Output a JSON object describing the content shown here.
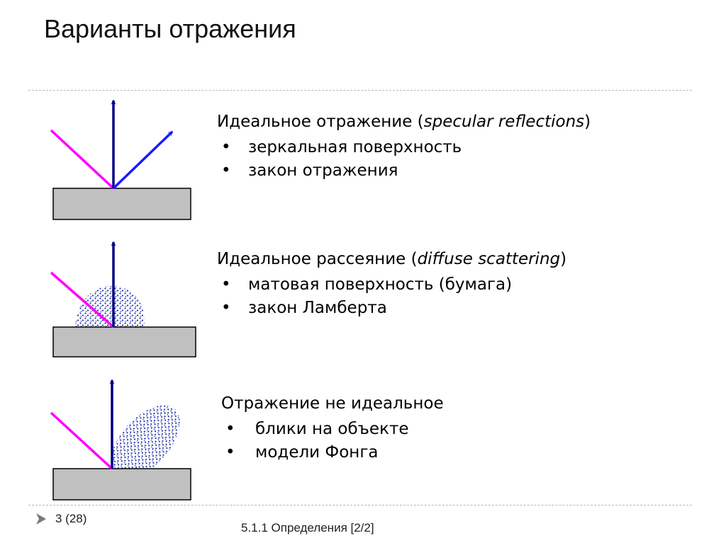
{
  "slide": {
    "title": "Варианты отражения"
  },
  "sections": [
    {
      "title_prefix": "Идеальное отражение (",
      "title_term": "specular reflections",
      "title_suffix": ")",
      "bullets": [
        "зеркальная поверхность",
        "закон отражения"
      ]
    },
    {
      "title_prefix": "Идеальное рассеяние (",
      "title_term": "diffuse scattering",
      "title_suffix": ")",
      "bullets": [
        "матовая поверхность (бумага)",
        "закон Ламберта"
      ]
    },
    {
      "title_prefix": "Отражение не идеальное",
      "title_term": "",
      "title_suffix": "",
      "bullets": [
        "блики на объекте",
        "модели Фонга"
      ]
    }
  ],
  "colors": {
    "incident_ray": "#ff00ff",
    "normal_ray": "#000080",
    "reflected_ray": "#1a1aff",
    "surface_fill": "#c0c0c0",
    "scatter_dots": "#2233aa"
  },
  "footer": {
    "page": "3 (28)",
    "section": "5.1.1 Определения  [2/2]"
  }
}
